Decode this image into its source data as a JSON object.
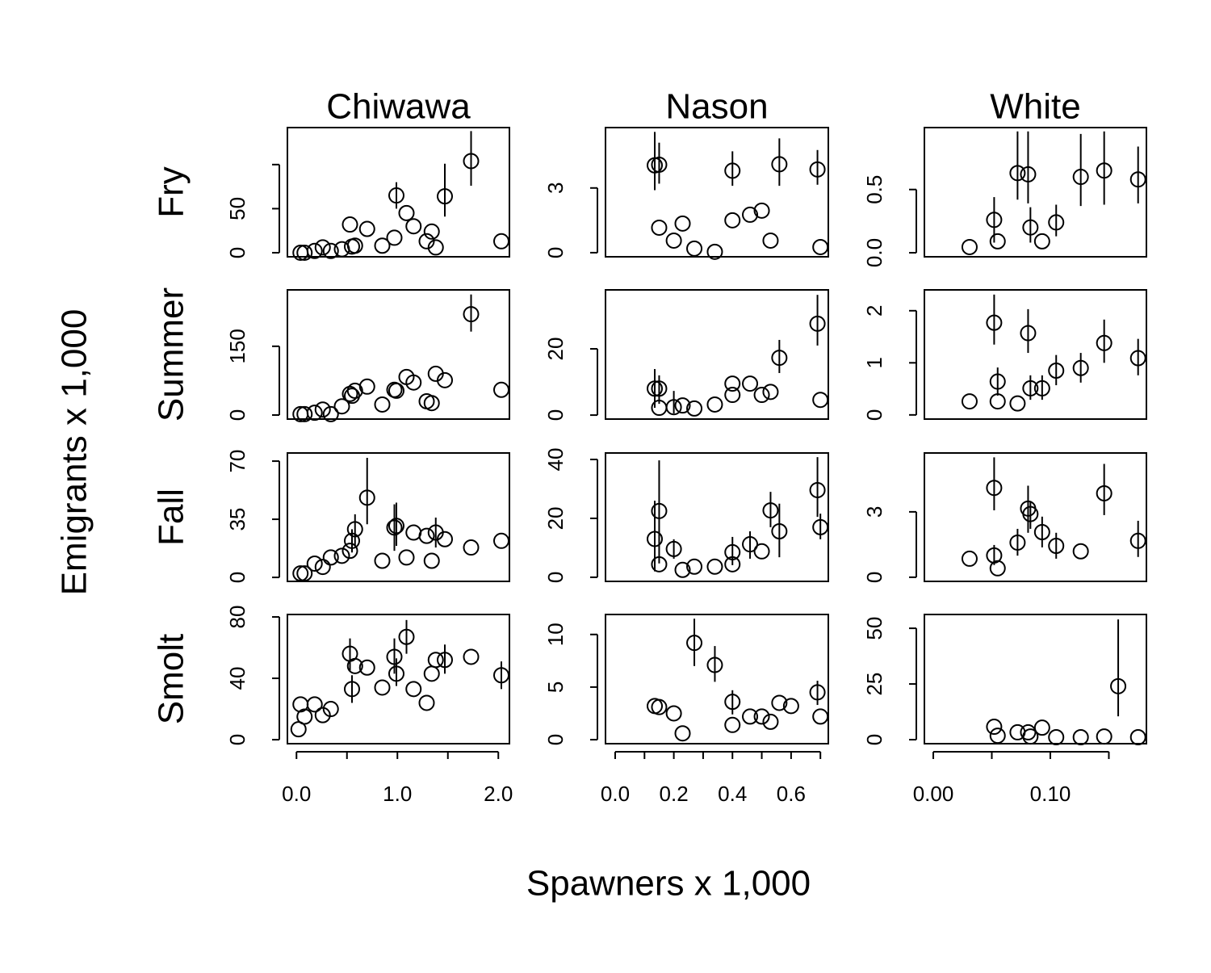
{
  "figure": {
    "xlabel": "Spawners x 1,000",
    "ylabel": "Emigrants x 1,000",
    "columns": [
      "Chiwawa",
      "Nason",
      "White"
    ],
    "rows": [
      "Fry",
      "Summer",
      "Fall",
      "Smolt"
    ]
  },
  "chart_data": [
    {
      "type": "scatter",
      "x": [
        0.04,
        0.08,
        0.18,
        0.26,
        0.34,
        0.45,
        0.53,
        0.55,
        0.58,
        0.7,
        0.85,
        0.97,
        0.99,
        1.09,
        1.16,
        1.29,
        1.34,
        1.38,
        1.47,
        1.73,
        2.03
      ],
      "values": [
        0,
        0,
        2,
        6,
        2,
        4,
        32,
        7,
        8,
        27,
        8,
        17,
        65,
        45,
        30,
        13,
        24,
        6,
        64,
        104,
        13
      ],
      "lower": [
        null,
        null,
        null,
        null,
        null,
        null,
        null,
        null,
        null,
        null,
        null,
        null,
        50,
        null,
        null,
        null,
        null,
        null,
        41,
        76,
        null
      ],
      "upper": [
        null,
        null,
        null,
        null,
        null,
        null,
        null,
        null,
        null,
        null,
        null,
        null,
        80,
        null,
        null,
        null,
        null,
        null,
        101,
        138,
        null
      ],
      "xlim": [
        -0.09,
        2.11
      ],
      "ylim": [
        -4.6,
        142
      ],
      "yticks": [
        0,
        50,
        {
          "value": 100,
          "label": null
        }
      ]
    },
    {
      "type": "scatter",
      "x": [
        0.135,
        0.15,
        0.15,
        0.2,
        0.23,
        0.27,
        0.34,
        0.4,
        0.4,
        0.46,
        0.5,
        0.53,
        0.56,
        0.69,
        0.7
      ],
      "values": [
        4.05,
        4.08,
        1.16,
        0.56,
        1.35,
        0.19,
        0.04,
        3.8,
        1.5,
        1.76,
        1.95,
        0.56,
        4.1,
        3.86,
        0.26
      ],
      "lower": [
        2.9,
        3.2,
        null,
        null,
        null,
        null,
        null,
        3.1,
        null,
        null,
        null,
        null,
        3.1,
        3.15,
        null
      ],
      "upper": [
        5.6,
        5.1,
        null,
        null,
        null,
        null,
        null,
        4.7,
        null,
        null,
        null,
        null,
        5.3,
        4.76,
        null
      ],
      "xlim": [
        -0.033,
        0.727
      ],
      "ylim": [
        -0.19,
        5.8
      ],
      "yticks": [
        0,
        3
      ]
    },
    {
      "type": "scatter",
      "x": [
        0.031,
        0.052,
        0.055,
        0.072,
        0.081,
        0.083,
        0.093,
        0.105,
        0.126,
        0.146,
        0.175
      ],
      "values": [
        0.045,
        0.26,
        0.09,
        0.63,
        0.62,
        0.2,
        0.09,
        0.24,
        0.6,
        0.65,
        0.58
      ],
      "lower": [
        null,
        0.08,
        null,
        0.42,
        0.39,
        0.08,
        null,
        0.13,
        0.37,
        0.38,
        0.39
      ],
      "upper": [
        null,
        0.44,
        null,
        0.96,
        0.96,
        0.36,
        null,
        0.38,
        0.94,
        0.96,
        0.84
      ],
      "xlim": [
        -0.0076,
        0.1821
      ],
      "ylim": [
        -0.032,
        0.99
      ],
      "yticks": [
        {
          "value": 0,
          "label": "0.0"
        },
        {
          "value": 0.5,
          "label": "0.5"
        }
      ]
    },
    {
      "type": "scatter",
      "x": [
        0.04,
        0.08,
        0.18,
        0.26,
        0.34,
        0.45,
        0.53,
        0.55,
        0.58,
        0.7,
        0.85,
        0.97,
        0.99,
        1.09,
        1.16,
        1.29,
        1.34,
        1.38,
        1.47,
        1.73,
        2.03
      ],
      "values": [
        2,
        2,
        5,
        12,
        2,
        19,
        46,
        42,
        53,
        62,
        23,
        55,
        53,
        83,
        71,
        30,
        26,
        90,
        76,
        220,
        55
      ],
      "lower": [
        null,
        null,
        null,
        null,
        null,
        null,
        null,
        null,
        null,
        null,
        null,
        null,
        null,
        null,
        null,
        null,
        null,
        null,
        null,
        182,
        null
      ],
      "upper": [
        null,
        null,
        null,
        null,
        null,
        null,
        null,
        null,
        null,
        null,
        null,
        null,
        null,
        null,
        null,
        null,
        null,
        null,
        null,
        263,
        null
      ],
      "xlim": [
        -0.09,
        2.11
      ],
      "ylim": [
        -8.8,
        273
      ],
      "yticks": [
        0,
        150
      ]
    },
    {
      "type": "scatter",
      "x": [
        0.135,
        0.15,
        0.15,
        0.2,
        0.23,
        0.27,
        0.34,
        0.4,
        0.4,
        0.46,
        0.5,
        0.53,
        0.56,
        0.69,
        0.7
      ],
      "values": [
        8,
        8,
        2.2,
        2.4,
        2.9,
        2,
        3.2,
        9.5,
        6.1,
        9.5,
        6.1,
        7,
        17.3,
        27.6,
        4.6
      ],
      "lower": [
        2.2,
        3.4,
        null,
        0.5,
        null,
        null,
        null,
        null,
        null,
        null,
        null,
        null,
        12.7,
        21,
        null
      ],
      "upper": [
        13.9,
        12,
        null,
        7.3,
        null,
        null,
        null,
        null,
        null,
        null,
        null,
        null,
        22.7,
        36.3,
        null
      ],
      "xlim": [
        -0.033,
        0.727
      ],
      "ylim": [
        -1.2,
        37.8
      ],
      "yticks": [
        0,
        20
      ]
    },
    {
      "type": "scatter",
      "x": [
        0.031,
        0.052,
        0.055,
        0.055,
        0.072,
        0.081,
        0.083,
        0.093,
        0.105,
        0.126,
        0.146,
        0.175
      ],
      "values": [
        0.26,
        1.77,
        0.64,
        0.26,
        0.22,
        1.57,
        0.51,
        0.51,
        0.85,
        0.9,
        1.38,
        1.09
      ],
      "lower": [
        null,
        1.35,
        0.37,
        null,
        null,
        1.19,
        0.29,
        0.29,
        0.57,
        0.62,
        1.0,
        0.76
      ],
      "upper": [
        null,
        2.31,
        0.91,
        null,
        null,
        2.03,
        0.76,
        0.76,
        1.15,
        1.19,
        1.83,
        1.46
      ],
      "xlim": [
        -0.0076,
        0.1821
      ],
      "ylim": [
        -0.08,
        2.4
      ],
      "yticks": [
        0,
        1,
        2
      ]
    },
    {
      "type": "scatter",
      "x": [
        0.04,
        0.08,
        0.18,
        0.26,
        0.34,
        0.45,
        0.53,
        0.55,
        0.58,
        0.7,
        0.85,
        0.97,
        0.99,
        1.09,
        1.16,
        1.29,
        1.34,
        1.38,
        1.47,
        1.73,
        2.03
      ],
      "values": [
        2.4,
        2.4,
        8.3,
        6.3,
        12,
        13,
        16,
        22,
        29,
        48,
        10,
        30,
        31,
        12,
        27,
        25,
        10,
        27,
        23,
        18,
        22
      ],
      "lower": [
        null,
        null,
        null,
        null,
        null,
        null,
        null,
        15,
        19,
        32,
        null,
        16,
        19,
        null,
        null,
        null,
        null,
        18,
        null,
        null,
        null
      ],
      "upper": [
        null,
        null,
        null,
        null,
        null,
        null,
        null,
        29,
        38,
        72,
        null,
        44,
        45,
        null,
        null,
        null,
        null,
        36,
        null,
        null,
        null
      ],
      "xlim": [
        -0.09,
        2.11
      ],
      "ylim": [
        -2.4,
        74.9
      ],
      "yticks": [
        0,
        35,
        70
      ]
    },
    {
      "type": "scatter",
      "x": [
        0.135,
        0.15,
        0.15,
        0.2,
        0.23,
        0.27,
        0.34,
        0.4,
        0.4,
        0.46,
        0.5,
        0.53,
        0.56,
        0.69,
        0.7
      ],
      "values": [
        13,
        22.5,
        4.4,
        9.6,
        2.5,
        3.6,
        3.6,
        8.5,
        4.4,
        11.2,
        8.8,
        22.7,
        15.6,
        29.6,
        17
      ],
      "lower": [
        2,
        4.7,
        null,
        6.3,
        null,
        null,
        null,
        4.1,
        null,
        6.3,
        null,
        17,
        6.8,
        20.5,
        12.9
      ],
      "upper": [
        26,
        39.7,
        null,
        12.9,
        null,
        null,
        null,
        13.7,
        null,
        15.6,
        null,
        29,
        25,
        40.8,
        21.6
      ],
      "xlim": [
        -0.033,
        0.727
      ],
      "ylim": [
        -1.4,
        42.2
      ],
      "yticks": [
        0,
        20,
        40
      ]
    },
    {
      "type": "scatter",
      "x": [
        0.031,
        0.052,
        0.052,
        0.055,
        0.072,
        0.081,
        0.083,
        0.093,
        0.105,
        0.126,
        0.146,
        0.175
      ],
      "values": [
        0.85,
        4.1,
        1.0,
        0.41,
        1.59,
        3.15,
        2.9,
        2.07,
        1.44,
        1.19,
        3.85,
        1.67
      ],
      "lower": [
        null,
        3.07,
        0.56,
        null,
        0.99,
        2.04,
        2.22,
        1.37,
        0.85,
        null,
        2.85,
        0.93
      ],
      "upper": [
        null,
        5.5,
        1.48,
        null,
        2.22,
        4.2,
        3.5,
        2.78,
        2.04,
        null,
        5.2,
        2.59
      ],
      "xlim": [
        -0.0076,
        0.1821
      ],
      "ylim": [
        -0.19,
        5.7
      ],
      "yticks": [
        0,
        3
      ]
    },
    {
      "type": "scatter",
      "x": [
        0.02,
        0.04,
        0.08,
        0.18,
        0.26,
        0.34,
        0.53,
        0.55,
        0.58,
        0.7,
        0.85,
        0.97,
        0.99,
        1.09,
        1.16,
        1.29,
        1.34,
        1.38,
        1.47,
        1.73,
        2.03
      ],
      "values": [
        6.8,
        23,
        15,
        23,
        16,
        20,
        56,
        33,
        48,
        47,
        34,
        54,
        43,
        67,
        33,
        24,
        43,
        52,
        52,
        54,
        42
      ],
      "lower": [
        null,
        null,
        null,
        null,
        null,
        null,
        45,
        24,
        null,
        null,
        null,
        43,
        35,
        56,
        null,
        null,
        null,
        null,
        43,
        null,
        33
      ],
      "upper": [
        null,
        null,
        null,
        null,
        null,
        null,
        66,
        42,
        null,
        null,
        null,
        66,
        53,
        78,
        null,
        null,
        null,
        null,
        62,
        null,
        51
      ],
      "xlim": [
        -0.09,
        2.11
      ],
      "ylim": [
        -2.6,
        81.6
      ],
      "yticks": [
        0,
        40,
        80
      ],
      "xticks": [
        {
          "value": 0,
          "label": "0.0"
        },
        {
          "value": 0.5,
          "label": null
        },
        {
          "value": 1,
          "label": "1.0"
        },
        {
          "value": 1.5,
          "label": null
        },
        {
          "value": 2,
          "label": "2.0"
        }
      ]
    },
    {
      "type": "scatter",
      "x": [
        0.135,
        0.15,
        0.2,
        0.23,
        0.27,
        0.34,
        0.4,
        0.4,
        0.46,
        0.5,
        0.53,
        0.56,
        0.6,
        0.69,
        0.7
      ],
      "values": [
        3.2,
        3.1,
        2.5,
        0.6,
        9.2,
        7.1,
        3.6,
        1.4,
        2.2,
        2.2,
        1.7,
        3.5,
        3.2,
        4.5,
        2.2
      ],
      "lower": [
        null,
        null,
        null,
        null,
        7,
        5.5,
        2.4,
        null,
        null,
        null,
        null,
        null,
        null,
        3.3,
        null
      ],
      "upper": [
        null,
        null,
        null,
        null,
        11.5,
        8.9,
        4.7,
        null,
        null,
        null,
        null,
        null,
        null,
        5.6,
        null
      ],
      "xlim": [
        -0.033,
        0.727
      ],
      "ylim": [
        -0.38,
        11.9
      ],
      "yticks": [
        0,
        5,
        10
      ],
      "xticks": [
        {
          "value": 0,
          "label": "0.0"
        },
        {
          "value": 0.1,
          "label": null
        },
        {
          "value": 0.2,
          "label": "0.2"
        },
        {
          "value": 0.3,
          "label": null
        },
        {
          "value": 0.4,
          "label": "0.4"
        },
        {
          "value": 0.5,
          "label": null
        },
        {
          "value": 0.6,
          "label": "0.6"
        },
        {
          "value": 0.7,
          "label": null
        }
      ]
    },
    {
      "type": "scatter",
      "x": [
        0.052,
        0.055,
        0.072,
        0.081,
        0.083,
        0.093,
        0.105,
        0.126,
        0.146,
        0.158,
        0.175
      ],
      "values": [
        5.8,
        1.8,
        3.3,
        3.3,
        1.4,
        5.4,
        1.1,
        1.1,
        1.4,
        24,
        1.1
      ],
      "lower": [
        null,
        null,
        null,
        null,
        null,
        null,
        null,
        null,
        null,
        10.5,
        null
      ],
      "upper": [
        null,
        null,
        null,
        null,
        null,
        null,
        null,
        null,
        null,
        54,
        null
      ],
      "xlim": [
        -0.0076,
        0.1821
      ],
      "ylim": [
        -1.8,
        56.2
      ],
      "yticks": [
        0,
        25,
        50
      ],
      "xticks": [
        {
          "value": 0,
          "label": "0.00"
        },
        {
          "value": 0.05,
          "label": null
        },
        {
          "value": 0.1,
          "label": "0.10"
        },
        {
          "value": 0.15,
          "label": null
        }
      ]
    }
  ]
}
